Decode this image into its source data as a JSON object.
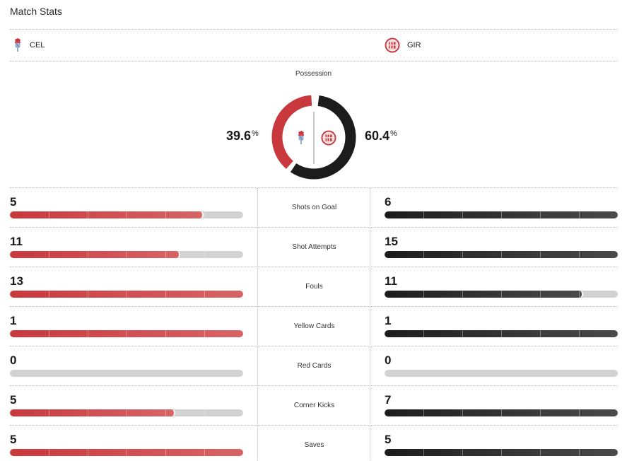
{
  "title": "Match Stats",
  "teams": {
    "home": {
      "abbr": "CEL",
      "color": "#c8383c",
      "logo": "celta-crest-icon"
    },
    "away": {
      "abbr": "GIR",
      "color": "#1c1c1c",
      "logo": "girona-crest-icon"
    }
  },
  "possession": {
    "label": "Possession",
    "home_value": "39.6",
    "away_value": "60.4",
    "unit": "%",
    "home_fraction": 0.396,
    "away_fraction": 0.604
  },
  "stats": [
    {
      "name": "Shots on Goal",
      "home": "5",
      "away": "6",
      "home_fill": 0.83,
      "away_fill": 1.0
    },
    {
      "name": "Shot Attempts",
      "home": "11",
      "away": "15",
      "home_fill": 0.73,
      "away_fill": 1.0
    },
    {
      "name": "Fouls",
      "home": "13",
      "away": "11",
      "home_fill": 1.0,
      "away_fill": 0.85
    },
    {
      "name": "Yellow Cards",
      "home": "1",
      "away": "1",
      "home_fill": 1.0,
      "away_fill": 1.0
    },
    {
      "name": "Red Cards",
      "home": "0",
      "away": "0",
      "home_fill": 0,
      "away_fill": 0
    },
    {
      "name": "Corner Kicks",
      "home": "5",
      "away": "7",
      "home_fill": 0.71,
      "away_fill": 1.0
    },
    {
      "name": "Saves",
      "home": "5",
      "away": "5",
      "home_fill": 1.0,
      "away_fill": 1.0
    }
  ]
}
